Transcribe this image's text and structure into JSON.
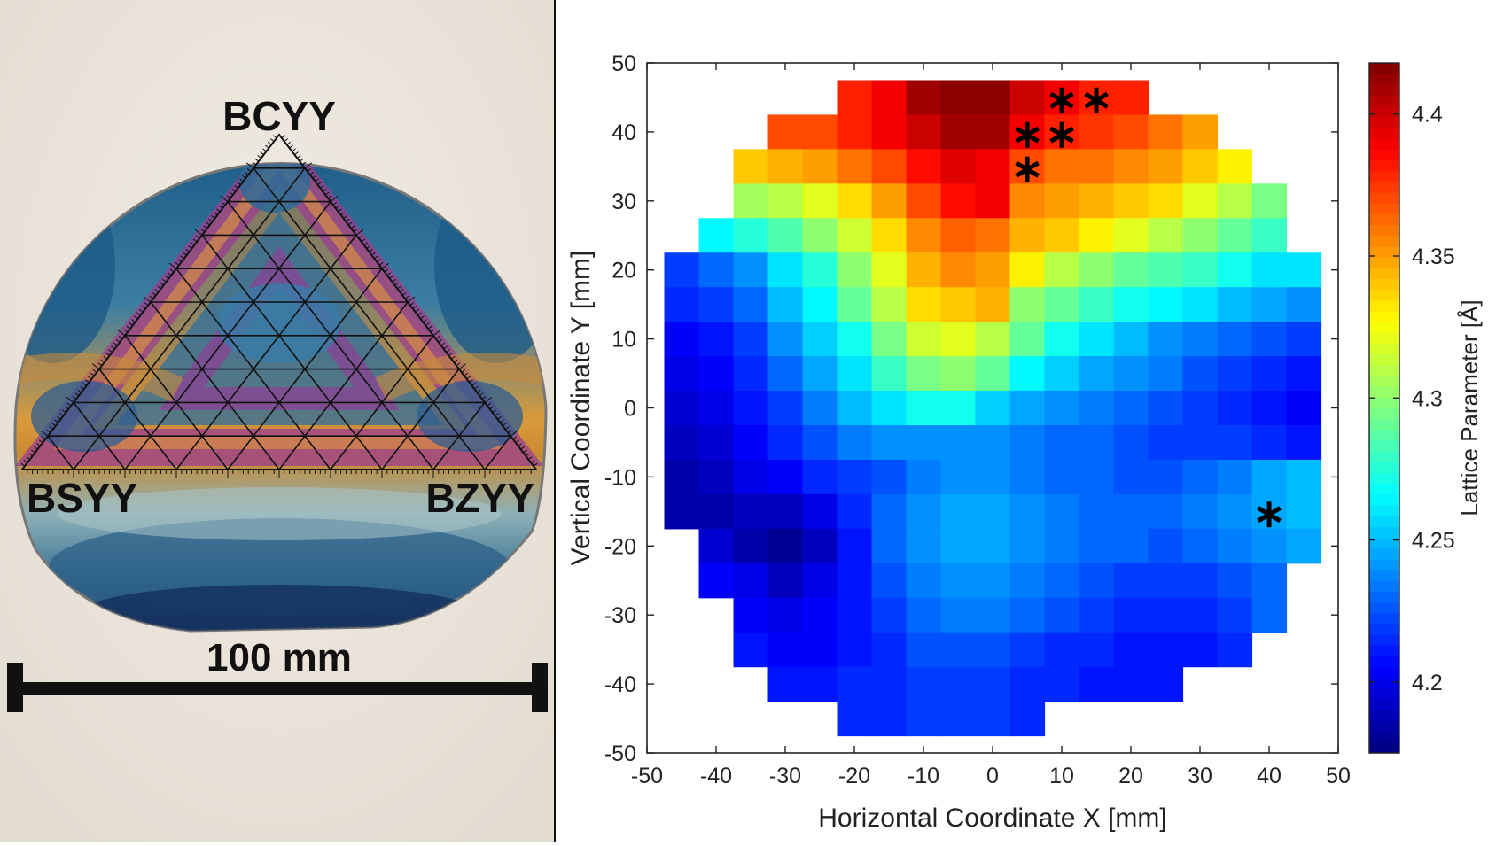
{
  "photo": {
    "label_top": "BCYY",
    "label_left": "BSYY",
    "label_right": "BZYY",
    "scale_text": "100 mm"
  },
  "chart_data": {
    "type": "heatmap",
    "xlabel": "Horizontal Coordinate X [mm]",
    "ylabel": "Vertical Coordinate Y [mm]",
    "colorbar_label": "Lattice Parameter [Å]",
    "xlim": [
      -50,
      50
    ],
    "ylim": [
      -50,
      50
    ],
    "xticks": [
      -50,
      -40,
      -30,
      -20,
      -10,
      0,
      10,
      20,
      30,
      40,
      50
    ],
    "yticks": [
      50,
      40,
      30,
      20,
      10,
      0,
      -10,
      -20,
      -30,
      -40,
      -50
    ],
    "clim": [
      4.175,
      4.418
    ],
    "cticks": [
      4.2,
      4.25,
      4.3,
      4.35,
      4.4
    ],
    "cell_size": 5,
    "x_centers": [
      -45,
      -40,
      -35,
      -30,
      -25,
      -20,
      -15,
      -10,
      -5,
      0,
      5,
      10,
      15,
      20,
      25,
      30,
      35,
      40,
      45
    ],
    "y_centers": [
      45,
      40,
      35,
      30,
      25,
      20,
      15,
      10,
      5,
      0,
      -5,
      -10,
      -15,
      -20,
      -25,
      -30,
      -35,
      -40,
      -45
    ],
    "values": [
      [
        null,
        null,
        null,
        null,
        null,
        4.38,
        4.39,
        4.41,
        4.415,
        4.415,
        4.4,
        4.39,
        4.38,
        4.38,
        null,
        null,
        null,
        null,
        null
      ],
      [
        null,
        null,
        null,
        4.37,
        4.37,
        4.38,
        4.39,
        4.4,
        4.41,
        4.41,
        4.39,
        4.38,
        4.375,
        4.37,
        4.36,
        4.35,
        null,
        null,
        null
      ],
      [
        null,
        null,
        4.34,
        4.345,
        4.35,
        4.36,
        4.37,
        4.385,
        4.395,
        4.39,
        4.37,
        4.36,
        4.36,
        4.355,
        4.35,
        4.34,
        4.33,
        null,
        null
      ],
      [
        null,
        null,
        4.305,
        4.31,
        4.32,
        4.335,
        4.35,
        4.37,
        4.385,
        4.39,
        4.355,
        4.35,
        4.345,
        4.34,
        4.335,
        4.32,
        4.31,
        4.295,
        null
      ],
      [
        null,
        4.265,
        4.275,
        4.285,
        4.3,
        4.315,
        4.335,
        4.355,
        4.365,
        4.36,
        4.345,
        4.34,
        4.33,
        4.32,
        4.31,
        4.3,
        4.29,
        4.28,
        null
      ],
      [
        4.22,
        4.23,
        4.24,
        4.26,
        4.275,
        4.3,
        4.32,
        4.345,
        4.355,
        4.35,
        4.33,
        4.31,
        4.3,
        4.29,
        4.285,
        4.28,
        4.27,
        4.26,
        4.26
      ],
      [
        4.215,
        4.22,
        4.23,
        4.25,
        4.265,
        4.29,
        4.31,
        4.335,
        4.34,
        4.345,
        4.3,
        4.29,
        4.28,
        4.27,
        4.265,
        4.26,
        4.25,
        4.245,
        4.24
      ],
      [
        4.205,
        4.21,
        4.22,
        4.24,
        4.255,
        4.27,
        4.295,
        4.315,
        4.32,
        4.31,
        4.29,
        4.27,
        4.26,
        4.25,
        4.24,
        4.235,
        4.23,
        4.225,
        4.22
      ],
      [
        4.2,
        4.205,
        4.215,
        4.23,
        4.245,
        4.26,
        4.28,
        4.295,
        4.3,
        4.29,
        4.265,
        4.255,
        4.245,
        4.24,
        4.235,
        4.225,
        4.22,
        4.215,
        4.21
      ],
      [
        4.195,
        4.2,
        4.21,
        4.22,
        4.235,
        4.25,
        4.26,
        4.27,
        4.27,
        4.255,
        4.245,
        4.24,
        4.235,
        4.23,
        4.225,
        4.22,
        4.215,
        4.21,
        4.205
      ],
      [
        4.19,
        4.195,
        4.205,
        4.215,
        4.225,
        4.235,
        4.24,
        4.24,
        4.24,
        4.24,
        4.235,
        4.23,
        4.23,
        4.225,
        4.22,
        4.22,
        4.22,
        4.215,
        4.21
      ],
      [
        4.185,
        4.19,
        4.2,
        4.205,
        4.215,
        4.22,
        4.225,
        4.235,
        4.24,
        4.24,
        4.235,
        4.23,
        4.23,
        4.225,
        4.225,
        4.23,
        4.235,
        4.245,
        4.25
      ],
      [
        4.185,
        4.185,
        4.19,
        4.19,
        4.2,
        4.215,
        4.23,
        4.24,
        4.245,
        4.245,
        4.24,
        4.235,
        4.23,
        4.23,
        4.23,
        4.235,
        4.24,
        4.245,
        4.25
      ],
      [
        null,
        4.195,
        4.185,
        4.18,
        4.19,
        4.21,
        4.23,
        4.24,
        4.245,
        4.245,
        4.24,
        4.235,
        4.23,
        4.23,
        4.225,
        4.23,
        4.235,
        4.24,
        4.245
      ],
      [
        null,
        4.205,
        4.2,
        4.19,
        4.2,
        4.21,
        4.225,
        4.235,
        4.24,
        4.24,
        4.235,
        4.23,
        4.225,
        4.22,
        4.22,
        4.22,
        4.225,
        4.23,
        null
      ],
      [
        null,
        null,
        4.205,
        4.2,
        4.205,
        4.21,
        4.22,
        4.23,
        4.235,
        4.235,
        4.23,
        4.225,
        4.22,
        4.215,
        4.215,
        4.215,
        4.22,
        4.23,
        null
      ],
      [
        null,
        null,
        4.21,
        4.205,
        4.205,
        4.21,
        4.215,
        4.225,
        4.225,
        4.225,
        4.22,
        4.215,
        4.215,
        4.21,
        4.21,
        4.21,
        4.215,
        null,
        null
      ],
      [
        null,
        null,
        null,
        4.21,
        4.21,
        4.215,
        4.215,
        4.22,
        4.22,
        4.22,
        4.215,
        4.215,
        4.21,
        4.21,
        4.21,
        null,
        null,
        null,
        null
      ],
      [
        null,
        null,
        null,
        null,
        null,
        4.215,
        4.215,
        4.22,
        4.22,
        4.22,
        4.215,
        null,
        null,
        null,
        null,
        null,
        null,
        null,
        null
      ]
    ],
    "markers": [
      {
        "x": 10,
        "y": 45
      },
      {
        "x": 15,
        "y": 45
      },
      {
        "x": 5,
        "y": 40
      },
      {
        "x": 10,
        "y": 40
      },
      {
        "x": 5,
        "y": 35
      },
      {
        "x": 40,
        "y": -15
      }
    ],
    "marker_symbol": "∗",
    "colormap": "jet"
  }
}
